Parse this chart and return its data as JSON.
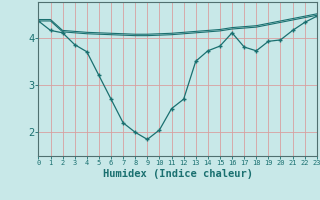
{
  "title": "",
  "xlabel": "Humidex (Indice chaleur)",
  "bg_color": "#c8e8e8",
  "grid_color": "#d8a0a0",
  "line_color": "#1a7070",
  "axis_color": "#1a7070",
  "xlim": [
    0,
    23
  ],
  "ylim": [
    1.5,
    4.75
  ],
  "yticks": [
    2,
    3,
    4
  ],
  "xticks": [
    0,
    1,
    2,
    3,
    4,
    5,
    6,
    7,
    8,
    9,
    10,
    11,
    12,
    13,
    14,
    15,
    16,
    17,
    18,
    19,
    20,
    21,
    22,
    23
  ],
  "line1_x": [
    0,
    1,
    2,
    3,
    4,
    5,
    6,
    7,
    8,
    9,
    10,
    11,
    12,
    13,
    14,
    15,
    16,
    17,
    18,
    19,
    20,
    21,
    22,
    23
  ],
  "line1_y": [
    4.35,
    4.15,
    4.1,
    3.85,
    3.7,
    3.2,
    2.7,
    2.2,
    2.0,
    1.85,
    2.05,
    2.5,
    2.7,
    3.5,
    3.72,
    3.82,
    4.1,
    3.8,
    3.72,
    3.92,
    3.95,
    4.15,
    4.32,
    4.45
  ],
  "line2_x": [
    0,
    1,
    2,
    3,
    4,
    5,
    6,
    7,
    8,
    9,
    10,
    11,
    12,
    13,
    14,
    15,
    16,
    17,
    18,
    19,
    20,
    21,
    22,
    23
  ],
  "line2_y": [
    4.35,
    4.35,
    4.12,
    4.1,
    4.08,
    4.07,
    4.06,
    4.05,
    4.04,
    4.04,
    4.05,
    4.06,
    4.08,
    4.1,
    4.12,
    4.14,
    4.18,
    4.2,
    4.22,
    4.27,
    4.32,
    4.37,
    4.42,
    4.47
  ],
  "line3_x": [
    0,
    1,
    2,
    3,
    4,
    5,
    6,
    7,
    8,
    9,
    10,
    11,
    12,
    13,
    14,
    15,
    16,
    17,
    18,
    19,
    20,
    21,
    22,
    23
  ],
  "line3_y": [
    4.38,
    4.38,
    4.15,
    4.13,
    4.11,
    4.1,
    4.09,
    4.08,
    4.07,
    4.07,
    4.08,
    4.09,
    4.11,
    4.13,
    4.15,
    4.17,
    4.21,
    4.23,
    4.25,
    4.3,
    4.35,
    4.4,
    4.45,
    4.5
  ]
}
